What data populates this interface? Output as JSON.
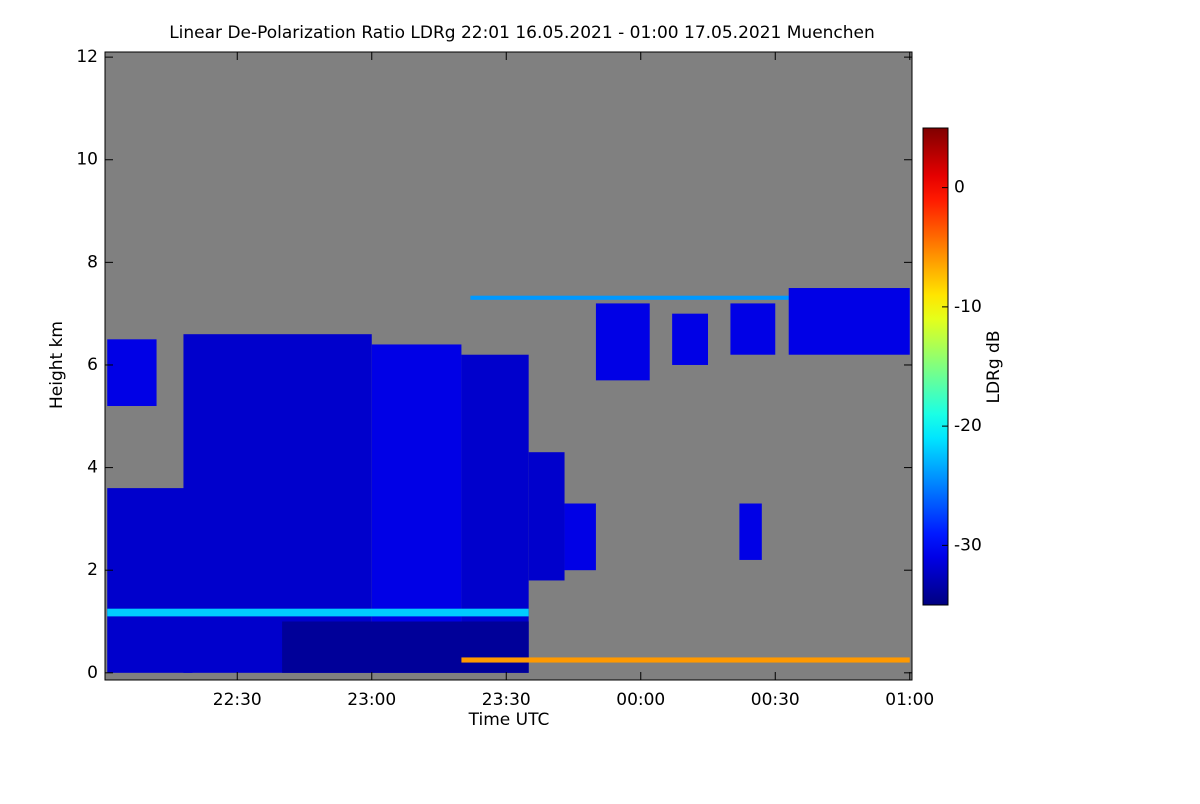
{
  "chart_data": {
    "type": "heatmap",
    "title": "Linear De-Polarization Ratio LDRg   22:01 16.05.2021 - 01:00 17.05.2021 Muenchen",
    "x_label": "Time UTC",
    "y_label": "Height km",
    "colorbar_label": "LDRg dB",
    "xlim": [
      0.5,
      180.5
    ],
    "xticks": [
      {
        "value": 30,
        "label": "22:30"
      },
      {
        "value": 60,
        "label": "23:00"
      },
      {
        "value": 90,
        "label": "23:30"
      },
      {
        "value": 120,
        "label": "00:00"
      },
      {
        "value": 150,
        "label": "00:30"
      },
      {
        "value": 180,
        "label": "01:00"
      }
    ],
    "ylim": [
      -0.14,
      12.1
    ],
    "yticks": [
      0,
      2,
      4,
      6,
      8,
      10,
      12
    ],
    "clim": [
      -35,
      5
    ],
    "cticks": [
      0,
      -10,
      -20,
      -30
    ],
    "colormap": "jet",
    "missing_color": "#808080",
    "regions": [
      {
        "x": [
          1,
          20
        ],
        "y": [
          0,
          3.6
        ],
        "value": -32
      },
      {
        "x": [
          1,
          12
        ],
        "y": [
          5.2,
          6.5
        ],
        "value": -31
      },
      {
        "x": [
          18,
          60
        ],
        "y": [
          0,
          6.6
        ],
        "value": -32
      },
      {
        "x": [
          60,
          80
        ],
        "y": [
          0,
          6.4
        ],
        "value": -31
      },
      {
        "x": [
          80,
          95
        ],
        "y": [
          0,
          6.2
        ],
        "value": -32
      },
      {
        "x": [
          95,
          103
        ],
        "y": [
          1.8,
          4.3
        ],
        "value": -32
      },
      {
        "x": [
          103,
          110
        ],
        "y": [
          2,
          3.3
        ],
        "value": -31
      },
      {
        "x": [
          40,
          95
        ],
        "y": [
          0,
          1.0
        ],
        "value": -34
      },
      {
        "x": [
          1,
          95
        ],
        "y": [
          1.1,
          1.25
        ],
        "value": -22
      },
      {
        "x": [
          82,
          180
        ],
        "y": [
          7.27,
          7.35
        ],
        "value": -24
      },
      {
        "x": [
          110,
          122
        ],
        "y": [
          5.7,
          7.2
        ],
        "value": -31
      },
      {
        "x": [
          127,
          135
        ],
        "y": [
          6.0,
          7.0
        ],
        "value": -31
      },
      {
        "x": [
          140,
          150
        ],
        "y": [
          6.2,
          7.2
        ],
        "value": -31
      },
      {
        "x": [
          153,
          180
        ],
        "y": [
          6.2,
          7.5
        ],
        "value": -31
      },
      {
        "x": [
          142,
          147
        ],
        "y": [
          2.2,
          3.3
        ],
        "value": -31
      },
      {
        "x": [
          80,
          180
        ],
        "y": [
          0.2,
          0.3
        ],
        "value": -6
      }
    ]
  }
}
